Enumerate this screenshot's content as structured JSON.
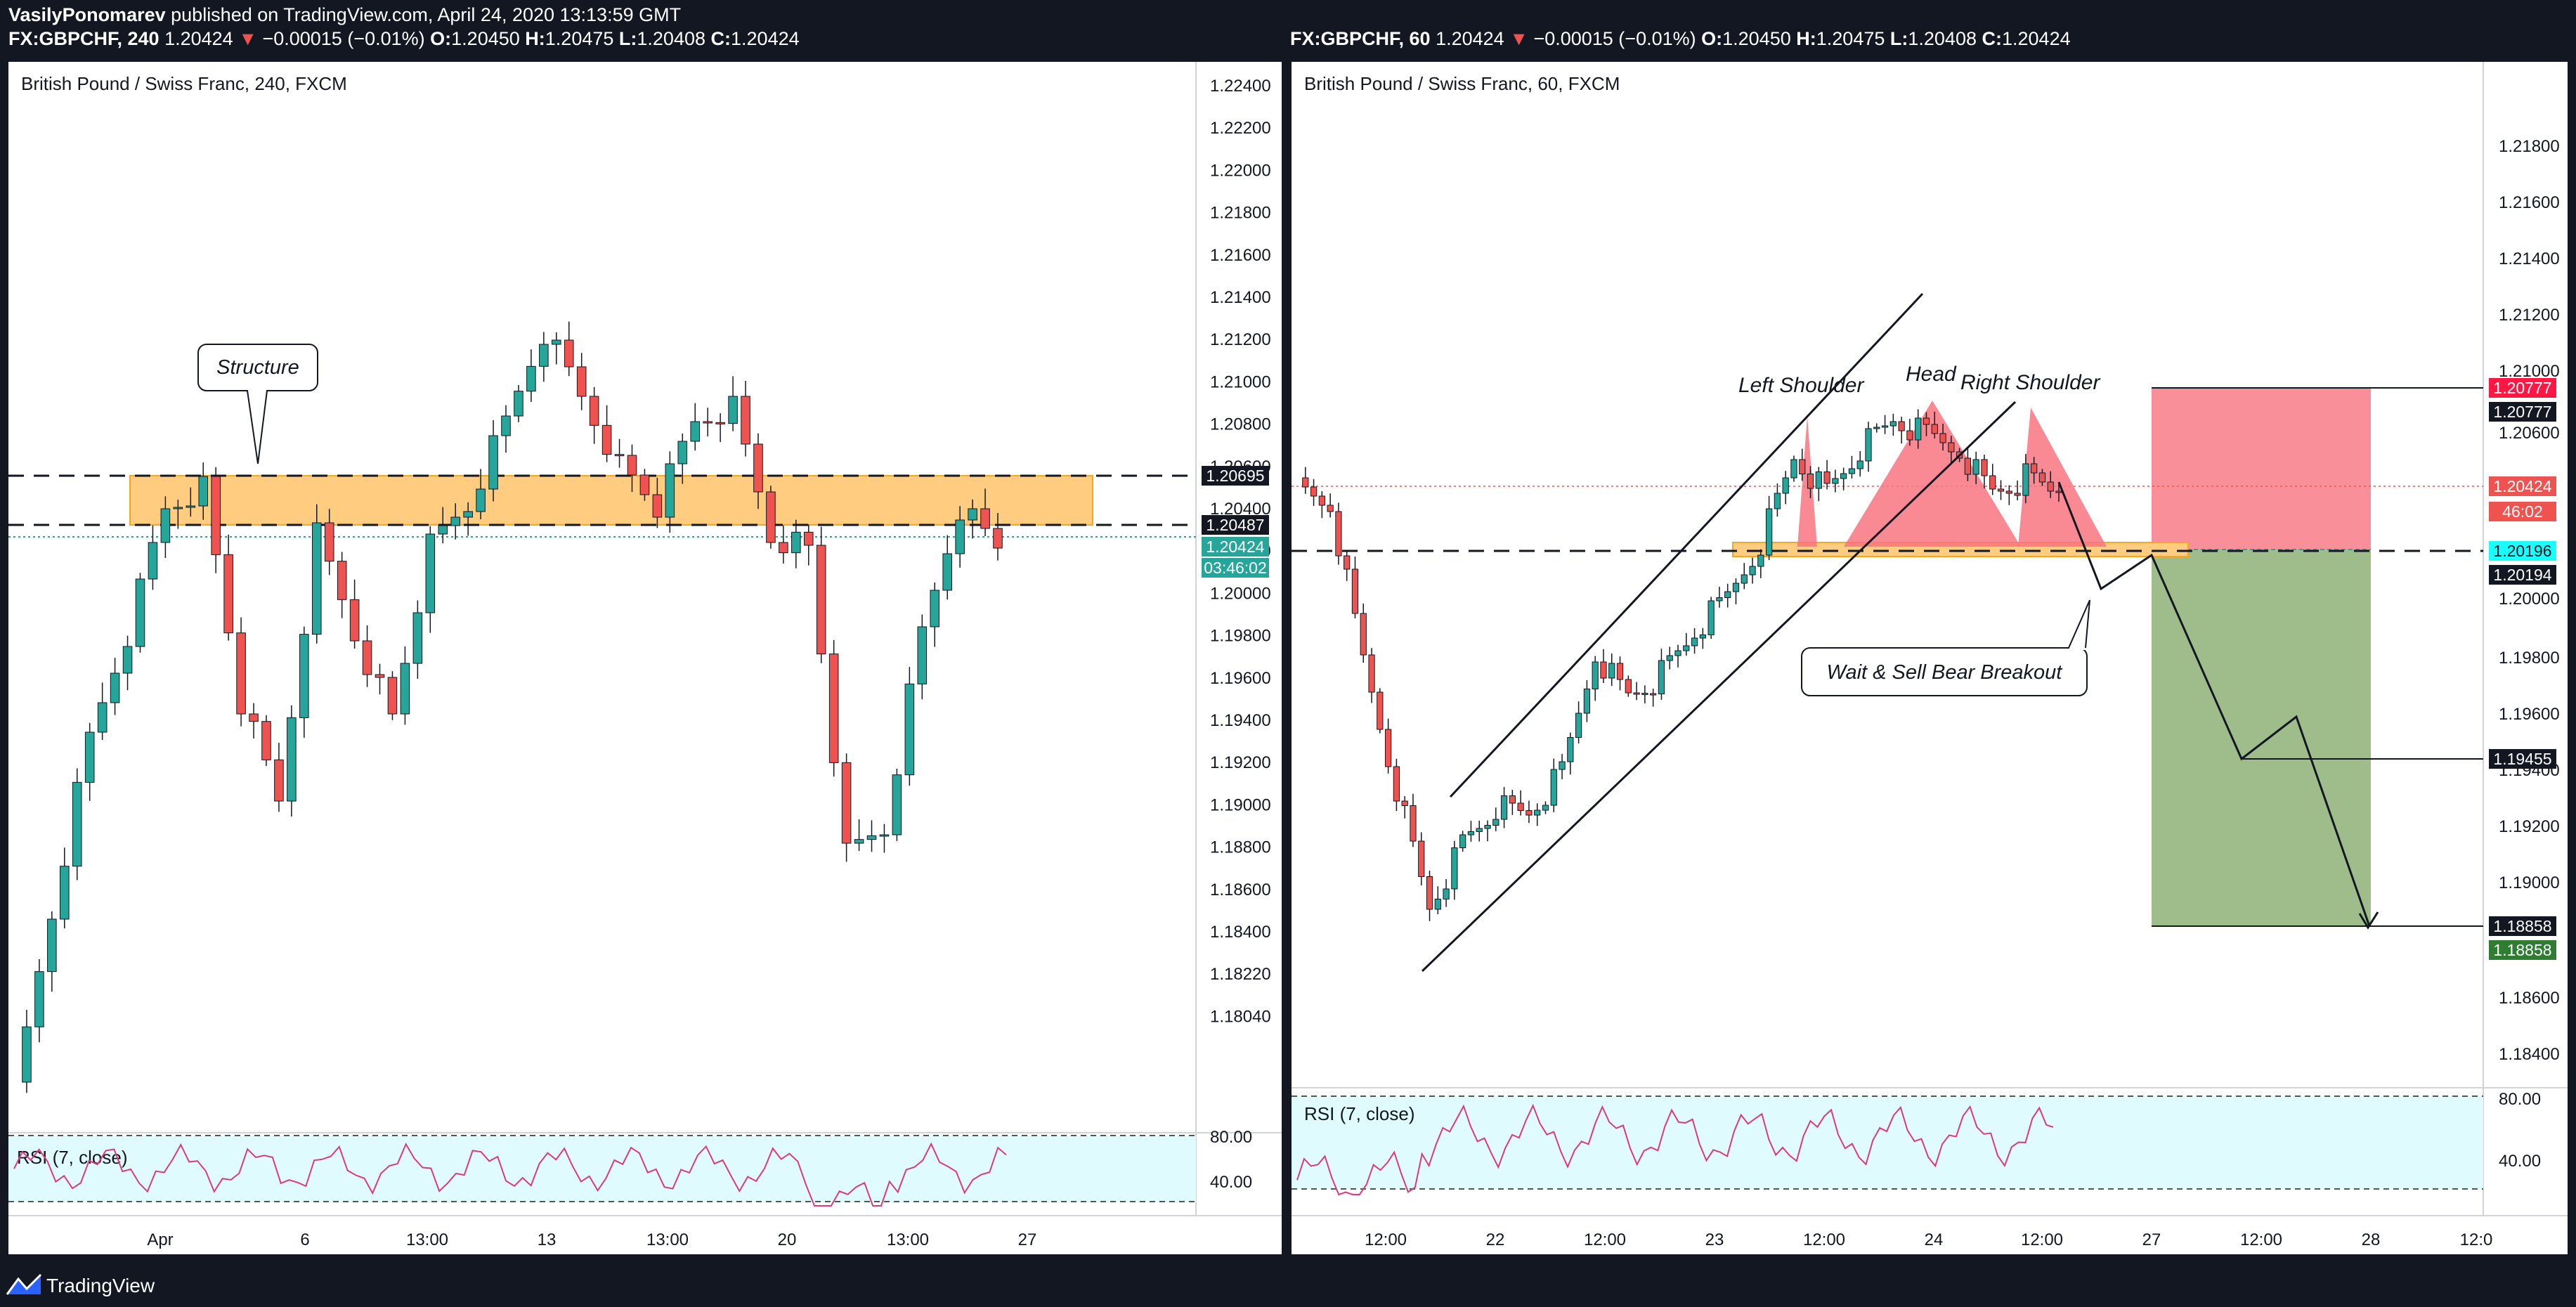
{
  "header": {
    "author": "VasilyPonomarev",
    "published": "published on TradingView.com, April 24, 2020 13:13:59 GMT",
    "left_quote": {
      "symbol": "FX:GBPCHF, 240",
      "last": "1.20424",
      "arrow": "▼",
      "change": "−0.00015 (−0.01%)",
      "o_label": "O:",
      "o": "1.20450",
      "h_label": "H:",
      "h": "1.20475",
      "l_label": "L:",
      "l": "1.20408",
      "c_label": "C:",
      "c": "1.20424"
    },
    "right_quote": {
      "symbol": "FX:GBPCHF, 60",
      "last": "1.20424",
      "arrow": "▼",
      "change": "−0.00015 (−0.01%)",
      "o_label": "O:",
      "o": "1.20450",
      "h_label": "H:",
      "h": "1.20475",
      "l_label": "L:",
      "l": "1.20408",
      "c_label": "C:",
      "c": "1.20424"
    }
  },
  "left_chart": {
    "title": "British Pound / Swiss Franc, 240, FXCM",
    "price_ticks": [
      "1.22400",
      "1.22200",
      "1.22000",
      "1.21800",
      "1.21600",
      "1.21400",
      "1.21200",
      "1.21000",
      "1.20800",
      "1.20600",
      "1.20400",
      "1.20200",
      "1.20000",
      "1.19800",
      "1.19600",
      "1.19400",
      "1.19200",
      "1.19000",
      "1.18800",
      "1.18600",
      "1.18400",
      "1.18220",
      "1.18040"
    ],
    "time_ticks": [
      "Apr",
      "6",
      "13:00",
      "13",
      "13:00",
      "20",
      "13:00",
      "27"
    ],
    "price_labels": {
      "zone_top": "1.20695",
      "zone_bottom": "1.20487",
      "last": "1.20424",
      "countdown": "03:46:02"
    },
    "annotation": "Structure",
    "rsi_label": "RSI (7, close)",
    "rsi_ticks": [
      "80.00",
      "40.00"
    ]
  },
  "right_chart": {
    "title": "British Pound / Swiss Franc, 60, FXCM",
    "price_ticks": [
      "1.21800",
      "1.21600",
      "1.21400",
      "1.21200",
      "1.21000",
      "1.20600",
      "1.20000",
      "1.19800",
      "1.19600",
      "1.19400",
      "1.19200",
      "1.19000",
      "1.18600",
      "1.18400"
    ],
    "time_ticks": [
      "12:00",
      "22",
      "12:00",
      "23",
      "12:00",
      "24",
      "12:00",
      "27",
      "12:00",
      "28",
      "12:0"
    ],
    "price_labels": {
      "stop_red": "1.20777",
      "stop_black": "1.20777",
      "last": "1.20424",
      "countdown": "46:02",
      "entry_cyan": "1.20196",
      "entry_black": "1.20194",
      "mid": "1.19455",
      "target_black": "1.18858",
      "target_green": "1.18858"
    },
    "pattern_labels": {
      "left_shoulder": "Left Shoulder",
      "head": "Head",
      "right_shoulder": "Right Shoulder"
    },
    "annotation": "Wait & Sell Bear Breakout",
    "rsi_label": "RSI (7, close)",
    "rsi_ticks": [
      "80.00",
      "40.00"
    ]
  },
  "colors": {
    "up": "#26a69a",
    "down": "#ef5350",
    "zone": "#ffb74d",
    "profit": "#9ebd8b",
    "loss": "#f8747f",
    "rsi": "#e0387a",
    "rsi_bg": "#e0fbfd",
    "dark": "#131722"
  },
  "footer": {
    "brand": "TradingView",
    "logo_icon": "tradingview-logo-icon"
  }
}
